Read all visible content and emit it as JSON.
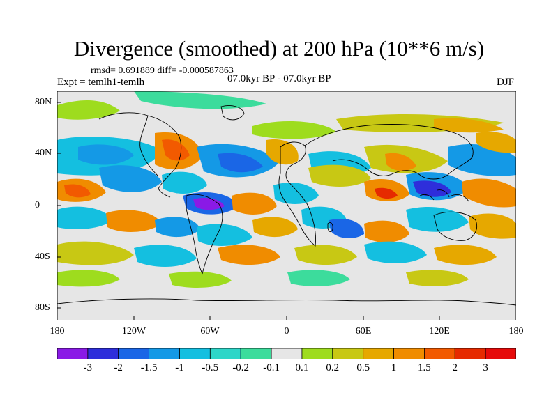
{
  "header": {
    "title": "Divergence (smoothed) at 200 hPa (10**6 m/s)",
    "stats": "rmsd= 0.691889 diff= -0.000587863",
    "experiment": "Expt = temlh1-temlh",
    "period": "07.0kyr BP - 07.0kyr BP",
    "season": "DJF"
  },
  "map_axes": {
    "lat_labels": [
      "80N",
      "40N",
      "0",
      "40S",
      "80S"
    ],
    "lon_labels": [
      "180",
      "120W",
      "60W",
      "0",
      "60E",
      "120E",
      "180"
    ]
  },
  "colorbar": {
    "labels": [
      "-3",
      "-2",
      "-1.5",
      "-1",
      "-0.5",
      "-0.2",
      "-0.1",
      "0.1",
      "0.2",
      "0.5",
      "1",
      "1.5",
      "2",
      "3"
    ],
    "colors": [
      "#8A1AE6",
      "#2E2EDB",
      "#1A66E6",
      "#1499E6",
      "#14BFE0",
      "#2ED6C8",
      "#3CDC9C",
      "#E6E6E6",
      "#9EDC1E",
      "#C8C814",
      "#E6A800",
      "#F08C00",
      "#F25A00",
      "#E62A00",
      "#E60A0A"
    ]
  }
}
